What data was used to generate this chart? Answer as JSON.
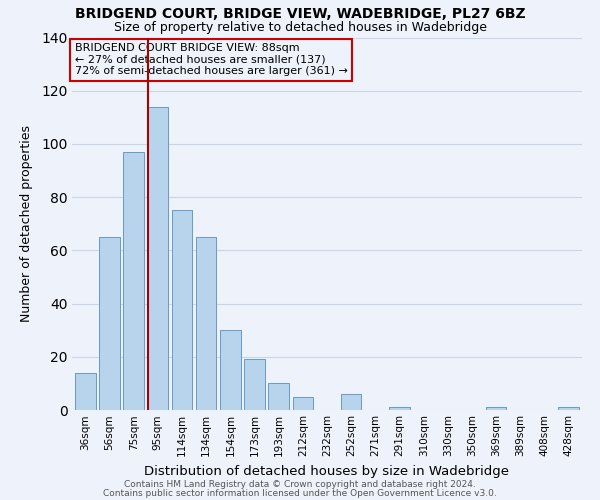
{
  "title": "BRIDGEND COURT, BRIDGE VIEW, WADEBRIDGE, PL27 6BZ",
  "subtitle": "Size of property relative to detached houses in Wadebridge",
  "xlabel": "Distribution of detached houses by size in Wadebridge",
  "ylabel": "Number of detached properties",
  "bar_labels": [
    "36sqm",
    "56sqm",
    "75sqm",
    "95sqm",
    "114sqm",
    "134sqm",
    "154sqm",
    "173sqm",
    "193sqm",
    "212sqm",
    "232sqm",
    "252sqm",
    "271sqm",
    "291sqm",
    "310sqm",
    "330sqm",
    "350sqm",
    "369sqm",
    "389sqm",
    "408sqm",
    "428sqm"
  ],
  "bar_values": [
    14,
    65,
    97,
    114,
    75,
    65,
    30,
    19,
    10,
    5,
    0,
    6,
    0,
    1,
    0,
    0,
    0,
    1,
    0,
    0,
    1
  ],
  "bar_color": "#b8d4ec",
  "bar_edge_color": "#6699cc",
  "bg_color": "#eef2fa",
  "grid_color": "#c8d4e8",
  "vline_color": "#aa0000",
  "annotation_text": "BRIDGEND COURT BRIDGE VIEW: 88sqm\n← 27% of detached houses are smaller (137)\n72% of semi-detached houses are larger (361) →",
  "annotation_box_edge": "#cc0000",
  "footer1": "Contains HM Land Registry data © Crown copyright and database right 2024.",
  "footer2": "Contains public sector information licensed under the Open Government Licence v3.0.",
  "ylim": [
    0,
    140
  ],
  "yticks": [
    0,
    20,
    40,
    60,
    80,
    100,
    120,
    140
  ],
  "vline_bar_index": 3
}
